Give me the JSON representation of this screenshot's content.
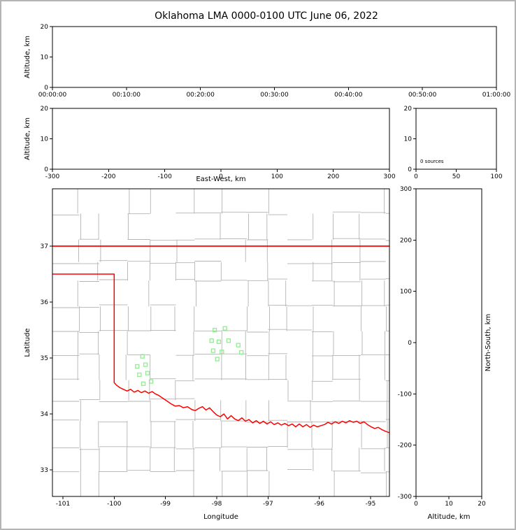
{
  "figure": {
    "title": "Oklahoma LMA 0000-0100 UTC June 06, 2022"
  },
  "colors": {
    "background": "#ffffff",
    "outer_border": "#b4b4b4",
    "axis": "#000000",
    "state_border": "#ff0000",
    "county_line": "#b3b3b3",
    "station_marker": "#90ee90"
  },
  "chart_data": [
    {
      "name": "time-altitude",
      "type": "scatter",
      "xlabel": "",
      "ylabel": "Altitude, km",
      "xticks": [
        "00:00:00",
        "00:10:00",
        "00:20:00",
        "00:30:00",
        "00:40:00",
        "00:50:00",
        "01:00:00"
      ],
      "yticks": [
        "0",
        "10",
        "20"
      ],
      "ylim": [
        0,
        20
      ],
      "grid": false,
      "points": []
    },
    {
      "name": "eastwest-altitude",
      "type": "scatter",
      "xlabel": "East-West, km",
      "ylabel": "Altitude, km",
      "xticks": [
        "-300",
        "-200",
        "-100",
        "0",
        "100",
        "200",
        "300"
      ],
      "xlim": [
        -300,
        300
      ],
      "yticks": [
        "0",
        "10",
        "20"
      ],
      "ylim": [
        0,
        20
      ],
      "grid": false,
      "points": []
    },
    {
      "name": "altitude-histogram",
      "type": "histogram",
      "annotation": "0 sources",
      "xticks": [
        "0",
        "50",
        "100"
      ],
      "xlim": [
        0,
        100
      ],
      "yticks": [
        "0",
        "10",
        "20"
      ],
      "ylim": [
        0,
        20
      ],
      "grid": false,
      "values": []
    },
    {
      "name": "plan-view-map",
      "type": "scatter",
      "xlabel": "Longitude",
      "ylabel": "Latitude",
      "xticks": [
        "-101",
        "-100",
        "-99",
        "-98",
        "-97",
        "-96",
        "-95"
      ],
      "xlim": [
        -101.2,
        -94.63
      ],
      "yticks": [
        "33",
        "34",
        "35",
        "36",
        "37"
      ],
      "ylim": [
        32.53,
        38.03
      ],
      "grid": false,
      "points": [],
      "stations_lonlat": [
        [
          -98.04,
          35.5
        ],
        [
          -97.84,
          35.53
        ],
        [
          -98.1,
          35.31
        ],
        [
          -97.96,
          35.29
        ],
        [
          -97.77,
          35.31
        ],
        [
          -98.07,
          35.13
        ],
        [
          -97.9,
          35.11
        ],
        [
          -97.99,
          34.98
        ],
        [
          -97.58,
          35.23
        ],
        [
          -97.52,
          35.1
        ],
        [
          -99.45,
          35.03
        ],
        [
          -99.55,
          34.85
        ],
        [
          -99.39,
          34.88
        ],
        [
          -99.51,
          34.7
        ],
        [
          -99.35,
          34.73
        ],
        [
          -99.43,
          34.54
        ],
        [
          -99.28,
          34.58
        ]
      ],
      "state_borders": {
        "kansas_oklahoma": [
          [
            -101.21,
            37.0
          ],
          [
            -94.62,
            37.0
          ]
        ],
        "texas_red_river": [
          [
            -101.21,
            36.5
          ],
          [
            -100.0,
            36.5
          ],
          [
            -100.0,
            34.56
          ],
          [
            -99.95,
            34.51
          ],
          [
            -99.89,
            34.47
          ],
          [
            -99.82,
            34.44
          ],
          [
            -99.75,
            34.41
          ],
          [
            -99.68,
            34.44
          ],
          [
            -99.61,
            34.39
          ],
          [
            -99.54,
            34.42
          ],
          [
            -99.47,
            34.38
          ],
          [
            -99.4,
            34.41
          ],
          [
            -99.33,
            34.37
          ],
          [
            -99.26,
            34.4
          ],
          [
            -99.2,
            34.36
          ],
          [
            -99.13,
            34.33
          ],
          [
            -99.05,
            34.28
          ],
          [
            -98.97,
            34.23
          ],
          [
            -98.89,
            34.18
          ],
          [
            -98.81,
            34.14
          ],
          [
            -98.73,
            34.15
          ],
          [
            -98.65,
            34.11
          ],
          [
            -98.57,
            34.13
          ],
          [
            -98.49,
            34.08
          ],
          [
            -98.42,
            34.06
          ],
          [
            -98.35,
            34.1
          ],
          [
            -98.28,
            34.13
          ],
          [
            -98.21,
            34.07
          ],
          [
            -98.14,
            34.11
          ],
          [
            -98.07,
            34.04
          ],
          [
            -98.0,
            33.98
          ],
          [
            -97.93,
            33.95
          ],
          [
            -97.86,
            34.0
          ],
          [
            -97.79,
            33.91
          ],
          [
            -97.72,
            33.97
          ],
          [
            -97.65,
            33.91
          ],
          [
            -97.58,
            33.88
          ],
          [
            -97.51,
            33.93
          ],
          [
            -97.44,
            33.87
          ],
          [
            -97.37,
            33.9
          ],
          [
            -97.3,
            33.84
          ],
          [
            -97.23,
            33.88
          ],
          [
            -97.16,
            33.83
          ],
          [
            -97.09,
            33.87
          ],
          [
            -97.02,
            33.82
          ],
          [
            -96.95,
            33.86
          ],
          [
            -96.88,
            33.81
          ],
          [
            -96.81,
            33.84
          ],
          [
            -96.74,
            33.8
          ],
          [
            -96.67,
            33.83
          ],
          [
            -96.6,
            33.79
          ],
          [
            -96.53,
            33.82
          ],
          [
            -96.46,
            33.77
          ],
          [
            -96.39,
            33.82
          ],
          [
            -96.32,
            33.77
          ],
          [
            -96.25,
            33.81
          ],
          [
            -96.18,
            33.76
          ],
          [
            -96.11,
            33.8
          ],
          [
            -96.04,
            33.77
          ],
          [
            -95.97,
            33.79
          ],
          [
            -95.9,
            33.81
          ],
          [
            -95.83,
            33.85
          ],
          [
            -95.76,
            33.82
          ],
          [
            -95.69,
            33.86
          ],
          [
            -95.62,
            33.83
          ],
          [
            -95.55,
            33.87
          ],
          [
            -95.48,
            33.84
          ],
          [
            -95.41,
            33.88
          ],
          [
            -95.34,
            33.85
          ],
          [
            -95.27,
            33.87
          ],
          [
            -95.2,
            33.83
          ],
          [
            -95.13,
            33.86
          ],
          [
            -95.06,
            33.81
          ],
          [
            -94.99,
            33.77
          ],
          [
            -94.92,
            33.74
          ],
          [
            -94.85,
            33.76
          ],
          [
            -94.78,
            33.72
          ],
          [
            -94.71,
            33.69
          ],
          [
            -94.62,
            33.66
          ]
        ]
      }
    },
    {
      "name": "northsouth-altitude",
      "type": "scatter",
      "xlabel": "Altitude, km",
      "ylabel": "North-South, km",
      "xticks": [
        "0",
        "10",
        "20"
      ],
      "xlim": [
        0,
        20
      ],
      "yticks": [
        "-300",
        "-200",
        "-100",
        "0",
        "100",
        "200",
        "300"
      ],
      "ylim": [
        -300,
        300
      ],
      "grid": false,
      "points": []
    }
  ]
}
